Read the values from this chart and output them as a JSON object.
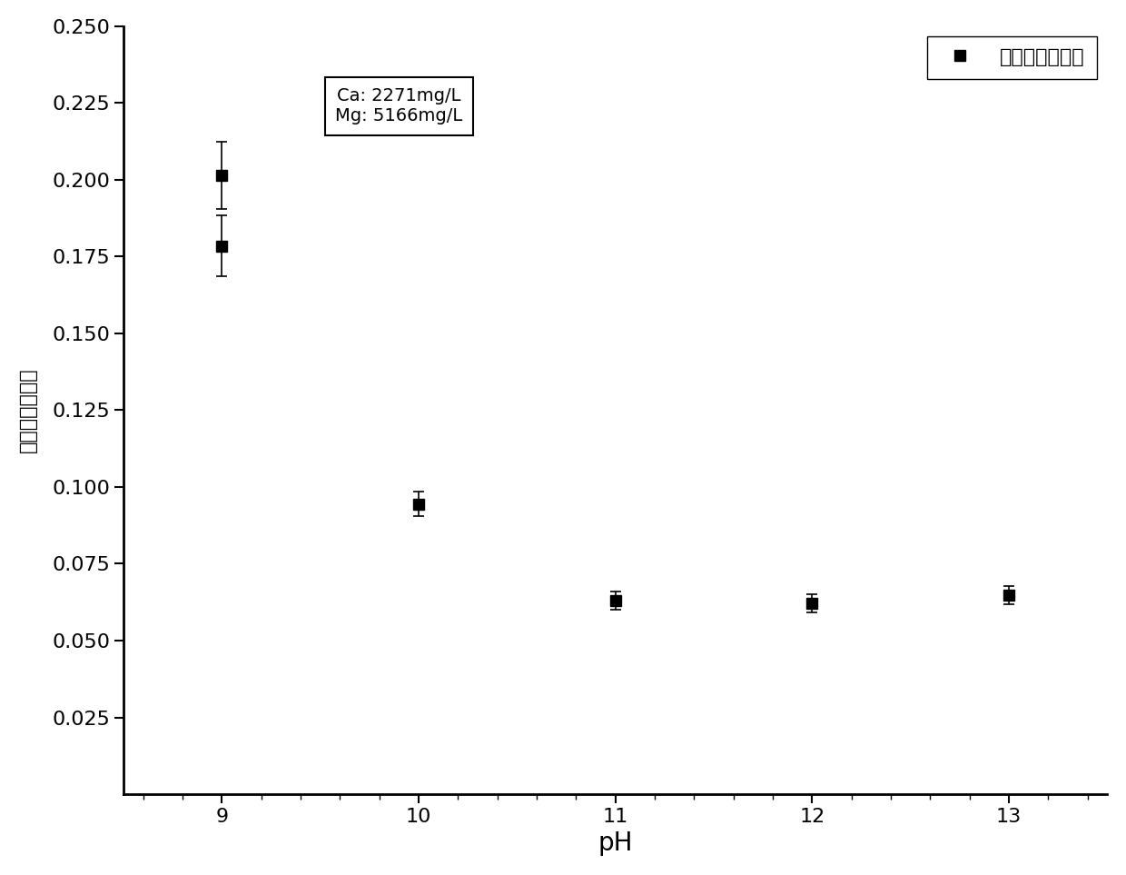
{
  "x_values": [
    9,
    9,
    10,
    11,
    12,
    13
  ],
  "y_values": [
    0.2015,
    0.1785,
    0.0945,
    0.063,
    0.0622,
    0.0648
  ],
  "y_errors": [
    0.011,
    0.01,
    0.004,
    0.003,
    0.003,
    0.003
  ],
  "xlabel": "pH",
  "ylabel": "馒镇沉淠摸尔比",
  "legend_label": "馒镇沉淠摸尔比",
  "annotation_text": "Ca: 2271mg/L\nMg: 5166mg/L",
  "xlim": [
    8.5,
    13.5
  ],
  "ylim": [
    0.0,
    0.25
  ],
  "yticks": [
    0.025,
    0.05,
    0.075,
    0.1,
    0.125,
    0.15,
    0.175,
    0.2,
    0.225,
    0.25
  ],
  "xticks": [
    9,
    10,
    11,
    12,
    13
  ],
  "marker": "s",
  "marker_size": 8,
  "color": "#000000",
  "background_color": "#ffffff",
  "xlabel_fontsize": 20,
  "ylabel_fontsize": 16,
  "tick_fontsize": 16,
  "legend_fontsize": 16,
  "annotation_fontsize": 14
}
